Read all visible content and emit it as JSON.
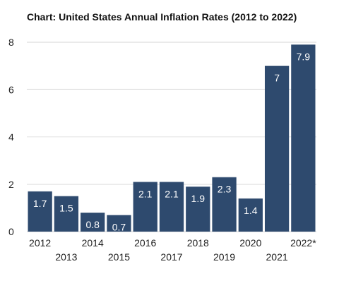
{
  "chart_data": {
    "type": "bar",
    "title": "Chart: United States Annual Inflation Rates (2012 to 2022)",
    "categories": [
      "2012",
      "2013",
      "2014",
      "2015",
      "2016",
      "2017",
      "2018",
      "2019",
      "2020",
      "2021",
      "2022*"
    ],
    "values": [
      1.7,
      1.5,
      0.8,
      0.7,
      2.1,
      2.1,
      1.9,
      2.3,
      1.4,
      7,
      7.9
    ],
    "data_labels": [
      "1.7",
      "1.5",
      "0.8",
      "0.7",
      "2.1",
      "2.1",
      "1.9",
      "2.3",
      "1.4",
      "7",
      "7.9"
    ],
    "xlabel": "",
    "ylabel": "",
    "ylim": [
      0,
      8
    ],
    "yticks": [
      "0",
      "2",
      "4",
      "6",
      "8"
    ],
    "grid": true,
    "legend": "none",
    "bar_color": "#2e4a6e",
    "grid_color": "#d6d6d6"
  }
}
